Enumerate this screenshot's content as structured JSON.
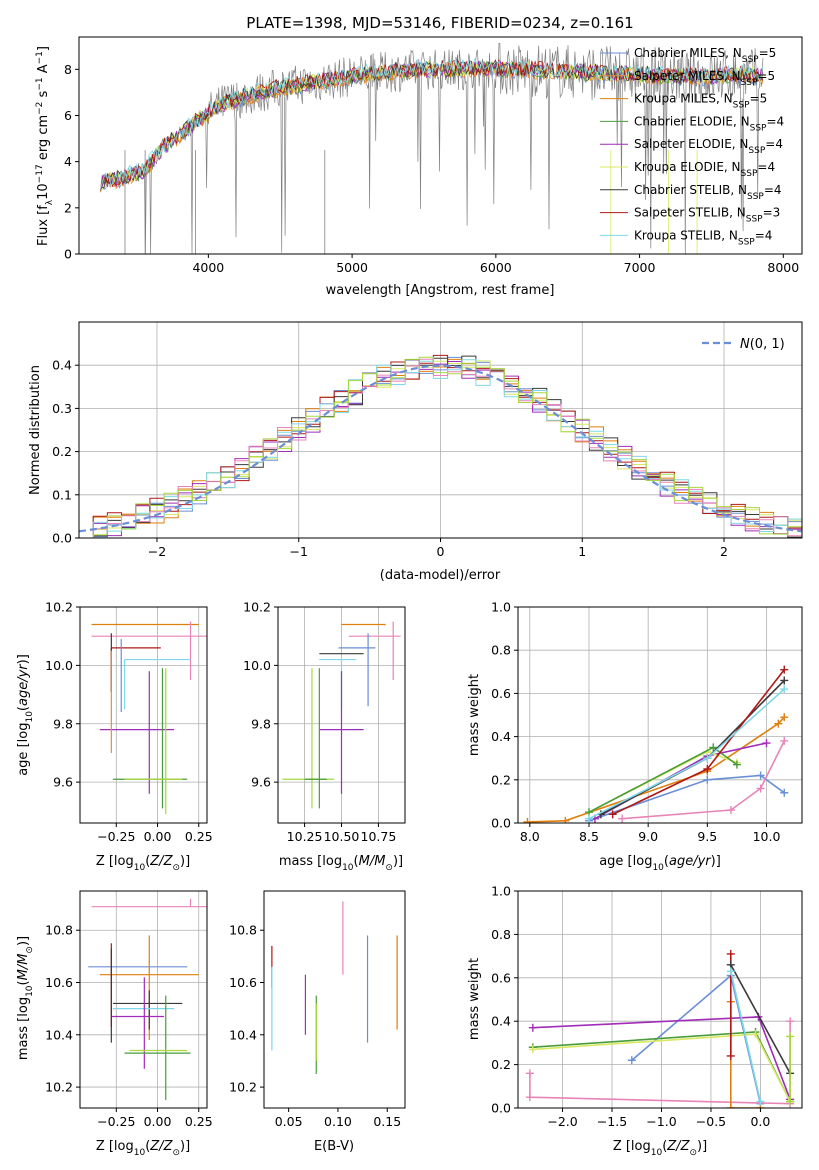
{
  "figure": {
    "title": "PLATE=1398, MJD=53146, FIBERID=0234, z=0.161"
  },
  "colors": {
    "Chabrier MILES": "#6a8fd6",
    "Salpeter MILES": "#f0883e",
    "Kroupa MILES": "#e07f0e",
    "Chabrier ELODIE": "#4a9c3a",
    "Salpeter ELODIE": "#a02cb8",
    "Kroupa ELODIE": "#d8e860",
    "Chabrier STELIB": "#3a3a3a",
    "Salpeter STELIB": "#b01818",
    "Kroupa STELIB": "#7fd8e8",
    "data": "#808080",
    "pink": "#e884b8",
    "lime": "#a8d83c"
  },
  "chart_data": [
    {
      "type": "line",
      "panel": "spectrum",
      "xlabel": "wavelength [Angstrom, rest frame]",
      "ylabel": "Flux [f_λ 10^-17 erg cm^-2 s^-1 A^-1]",
      "xlim": [
        3100,
        8130
      ],
      "ylim": [
        0,
        9.4
      ],
      "xticks": [
        4000,
        5000,
        6000,
        7000,
        8000
      ],
      "yticks": [
        0,
        2,
        4,
        6,
        8
      ],
      "legend_position": "right",
      "legend": [
        {
          "label": "Chabrier MILES, N_SSP=5",
          "color": "Chabrier MILES"
        },
        {
          "label": "Salpeter MILES, N_SSP=5",
          "color": "Salpeter MILES"
        },
        {
          "label": "Kroupa MILES, N_SSP=5",
          "color": "Kroupa MILES"
        },
        {
          "label": "Chabrier ELODIE, N_SSP=4",
          "color": "Chabrier ELODIE"
        },
        {
          "label": "Salpeter ELODIE, N_SSP=4",
          "color": "Salpeter ELODIE"
        },
        {
          "label": "Kroupa ELODIE, N_SSP=4",
          "color": "Kroupa ELODIE"
        },
        {
          "label": "Chabrier STELIB, N_SSP=4",
          "color": "Chabrier STELIB"
        },
        {
          "label": "Salpeter STELIB, N_SSP=3",
          "color": "Salpeter STELIB"
        },
        {
          "label": "Kroupa STELIB, N_SSP=4",
          "color": "Kroupa STELIB"
        }
      ],
      "model_continuum": {
        "x": [
          3250,
          3400,
          3550,
          3700,
          3850,
          4000,
          4100,
          4300,
          4500,
          4700,
          4900,
          5100,
          5300,
          5500,
          5700,
          5900,
          6100,
          6300,
          6500,
          6700,
          6900,
          7100,
          7300,
          7500,
          7700,
          7850
        ],
        "y": [
          3.1,
          3.3,
          3.6,
          4.7,
          5.4,
          6.1,
          6.5,
          6.9,
          7.2,
          7.4,
          7.6,
          7.8,
          7.9,
          8.0,
          8.0,
          8.05,
          8.0,
          7.95,
          7.9,
          7.85,
          7.8,
          7.75,
          7.7,
          7.7,
          7.75,
          7.75
        ]
      }
    },
    {
      "type": "bar",
      "panel": "residual_histogram",
      "xlabel": "(data-model)/error",
      "ylabel": "Normed distribution",
      "xlim": [
        -2.55,
        2.55
      ],
      "ylim": [
        0,
        0.5
      ],
      "xticks": [
        -2,
        -1,
        0,
        1,
        2
      ],
      "yticks": [
        0.0,
        0.1,
        0.2,
        0.3,
        0.4
      ],
      "grid": true,
      "legend_position": "top-right",
      "legend": [
        {
          "label": "N(0,1)",
          "color": "Chabrier MILES",
          "style": "dashed"
        }
      ],
      "bin_width": 0.1,
      "bin_start": -2.55
    },
    {
      "type": "scatter",
      "panel": "age_vs_Z",
      "xlabel": "Z [log10(Z/Z_sun)]",
      "ylabel": "age [log10(age/yr)]",
      "xlim": [
        -0.47,
        0.3
      ],
      "ylim": [
        9.46,
        10.2
      ],
      "xticks": [
        -0.25,
        0.0,
        0.25
      ],
      "yticks": [
        9.6,
        9.8,
        10.0,
        10.2
      ],
      "grid": true
    },
    {
      "type": "scatter",
      "panel": "age_vs_mass",
      "xlabel": "mass [log10(M/M_sun)]",
      "xlim": [
        10.07,
        10.93
      ],
      "ylim": [
        9.46,
        10.2
      ],
      "xticks": [
        10.25,
        10.5,
        10.75
      ],
      "yticks": [
        9.6,
        9.8,
        10.0,
        10.2
      ],
      "grid": true
    },
    {
      "type": "line",
      "panel": "massweight_vs_age",
      "xlabel": "age [log10(age/yr)]",
      "ylabel": "mass weight",
      "xlim": [
        7.9,
        10.3
      ],
      "ylim": [
        0,
        1
      ],
      "xticks": [
        8.0,
        8.5,
        9.0,
        9.5,
        10.0
      ],
      "yticks": [
        0.0,
        0.2,
        0.4,
        0.6,
        0.8,
        1.0
      ],
      "grid": true,
      "series": [
        {
          "color": "Chabrier MILES",
          "x": [
            8.5,
            9.5,
            9.95,
            10.15
          ],
          "y": [
            0.01,
            0.2,
            0.22,
            0.14
          ]
        },
        {
          "color": "Kroupa MILES",
          "x": [
            7.98,
            8.3,
            9.5,
            10.1,
            10.15
          ],
          "y": [
            0.005,
            0.01,
            0.24,
            0.46,
            0.49
          ]
        },
        {
          "color": "Salpeter ELODIE",
          "x": [
            8.55,
            9.5,
            10.0
          ],
          "y": [
            0.02,
            0.31,
            0.37
          ]
        },
        {
          "color": "Kroupa ELODIE",
          "x": [
            8.5,
            9.5,
            9.75
          ],
          "y": [
            0.05,
            0.33,
            0.28
          ]
        },
        {
          "color": "Chabrier ELODIE",
          "x": [
            8.5,
            9.55,
            9.75
          ],
          "y": [
            0.05,
            0.35,
            0.27
          ]
        },
        {
          "color": "Chabrier STELIB",
          "x": [
            8.6,
            9.5,
            10.15
          ],
          "y": [
            0.04,
            0.3,
            0.66
          ]
        },
        {
          "color": "Salpeter STELIB",
          "x": [
            8.7,
            9.5,
            10.15
          ],
          "y": [
            0.04,
            0.25,
            0.71
          ]
        },
        {
          "color": "Kroupa STELIB",
          "x": [
            8.5,
            9.5,
            10.15
          ],
          "y": [
            0.02,
            0.3,
            0.62
          ]
        },
        {
          "color": "pink",
          "x": [
            8.78,
            9.7,
            9.95,
            10.15
          ],
          "y": [
            0.02,
            0.06,
            0.16,
            0.38
          ]
        }
      ]
    },
    {
      "type": "scatter",
      "panel": "mass_vs_Z",
      "xlabel": "Z [log10(Z/Z_sun)]",
      "ylabel": "mass [log10(M/M_sun)]",
      "xlim": [
        -0.47,
        0.3
      ],
      "ylim": [
        10.12,
        10.95
      ],
      "xticks": [
        -0.25,
        0.0,
        0.25
      ],
      "yticks": [
        10.2,
        10.4,
        10.6,
        10.8
      ],
      "grid": true
    },
    {
      "type": "scatter",
      "panel": "mass_vs_EBV",
      "xlabel": "E(B-V)",
      "xlim": [
        0.025,
        0.168
      ],
      "ylim": [
        10.12,
        10.95
      ],
      "xticks": [
        0.05,
        0.1,
        0.15
      ],
      "yticks": [
        10.2,
        10.4,
        10.6,
        10.8
      ]
    },
    {
      "type": "line",
      "panel": "massweight_vs_Z",
      "xlabel": "Z [log10(Z/Z_sun)]",
      "ylabel": "mass weight",
      "xlim": [
        -2.45,
        0.42
      ],
      "ylim": [
        0,
        1
      ],
      "xticks": [
        -2.0,
        -1.5,
        -1.0,
        -0.5,
        0.0
      ],
      "yticks": [
        0.0,
        0.2,
        0.4,
        0.6,
        0.8,
        1.0
      ],
      "grid": true,
      "series": [
        {
          "color": "Chabrier MILES",
          "x": [
            -1.3,
            -0.3,
            0.0
          ],
          "y": [
            0.22,
            0.61,
            0.02
          ]
        },
        {
          "color": "Salpeter ELODIE",
          "x": [
            -2.3,
            -0.02,
            0.3
          ],
          "y": [
            0.37,
            0.42,
            0.04
          ]
        },
        {
          "color": "Chabrier ELODIE",
          "x": [
            -2.3,
            -0.05,
            0.3
          ],
          "y": [
            0.28,
            0.35,
            0.03
          ]
        },
        {
          "color": "Kroupa ELODIE",
          "x": [
            -2.3,
            -0.05,
            0.3
          ],
          "y": [
            0.27,
            0.34,
            0.03
          ]
        },
        {
          "color": "pink",
          "x": [
            -2.33,
            -2.33,
            0.3,
            0.3
          ],
          "y": [
            0.16,
            0.05,
            0.02,
            0.4
          ]
        },
        {
          "color": "Kroupa MILES",
          "x": [
            -0.3,
            -0.3,
            0.0
          ],
          "y": [
            0.49,
            0.0,
            0.0
          ]
        },
        {
          "color": "Salpeter STELIB",
          "x": [
            -0.3,
            -0.3
          ],
          "y": [
            0.71,
            0.24
          ]
        },
        {
          "color": "Chabrier STELIB",
          "x": [
            -0.3,
            0.3
          ],
          "y": [
            0.66,
            0.16
          ]
        },
        {
          "color": "Kroupa STELIB",
          "x": [
            -0.3,
            0.0
          ],
          "y": [
            0.63,
            0.03
          ]
        },
        {
          "color": "lime",
          "x": [
            0.3,
            0.3
          ],
          "y": [
            0.33,
            0.03
          ]
        }
      ]
    }
  ]
}
